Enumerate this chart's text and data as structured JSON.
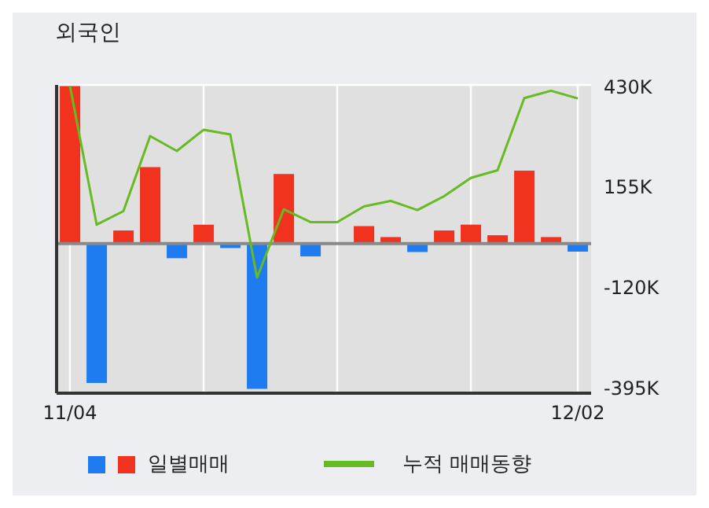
{
  "chart_data": {
    "type": "bar",
    "title": "외국인",
    "categories": [
      "11/04",
      null,
      null,
      null,
      null,
      null,
      null,
      null,
      null,
      null,
      null,
      null,
      null,
      null,
      null,
      null,
      null,
      null,
      null,
      "12/02"
    ],
    "series": [
      {
        "name": "일별매매",
        "colors": [
          "#f0321e",
          "#1e7cf0",
          "#f0321e",
          "#f0321e",
          "#1e7cf0",
          "#f0321e",
          "#1e7cf0",
          "#1e7cf0",
          "#f0321e",
          "#1e7cf0",
          "#f0321e",
          "#f0321e",
          "#f0321e",
          "#1e7cf0",
          "#f0321e",
          "#f0321e",
          "#f0321e",
          "#f0321e",
          "#f0321e",
          "#1e7cf0"
        ],
        "values": [
          432,
          -382,
          36,
          210,
          -40,
          52,
          -12,
          -398,
          191,
          -35,
          0,
          48,
          18,
          -23,
          36,
          52,
          23,
          200,
          18,
          -22
        ]
      },
      {
        "name": "누적 매매동향",
        "type": "line",
        "color": "#66bb22",
        "values": [
          432,
          52,
          89,
          295,
          254,
          312,
          299,
          -93,
          94,
          59,
          59,
          102,
          117,
          92,
          130,
          180,
          201,
          399,
          419,
          398
        ]
      }
    ],
    "ylim": [
      -410,
      435
    ],
    "yticks": [
      {
        "value": 430,
        "label": "430K"
      },
      {
        "value": 155,
        "label": "155K"
      },
      {
        "value": -120,
        "label": "-120K"
      },
      {
        "value": -395,
        "label": "-395K"
      }
    ],
    "grid": true,
    "legend": "bottom",
    "marker": "none",
    "line_style": "solid"
  }
}
